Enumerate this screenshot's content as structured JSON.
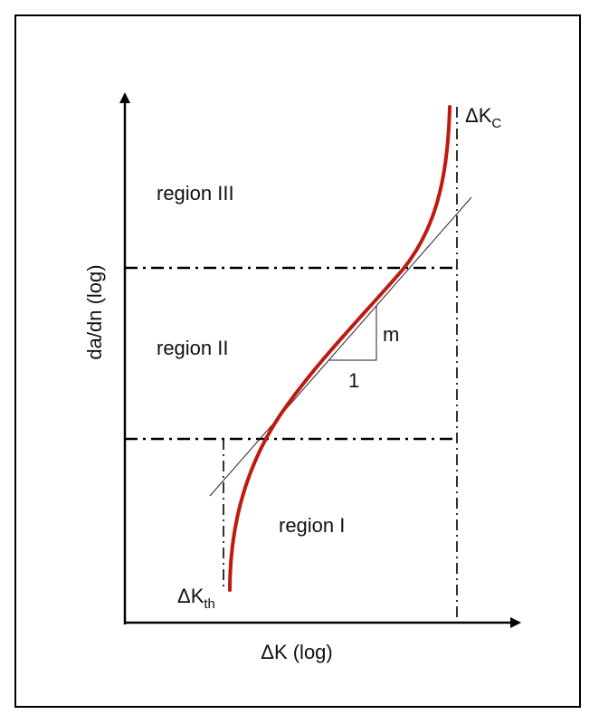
{
  "colors": {
    "curve": "#c0190f",
    "axes": "#000000",
    "tangent": "#222222",
    "boundaries": "#000000"
  },
  "axes": {
    "x_label": "ΔK (log)",
    "y_label": "da/dn (log)"
  },
  "regions": {
    "region_1": "region I",
    "region_2": "region II",
    "region_3": "region III"
  },
  "thresholds": {
    "th_main": "ΔK",
    "th_sub": "th",
    "c_main": "ΔK",
    "c_sub": "C"
  },
  "slope_triangle": {
    "rise_label": "m",
    "run_label": "1"
  }
}
